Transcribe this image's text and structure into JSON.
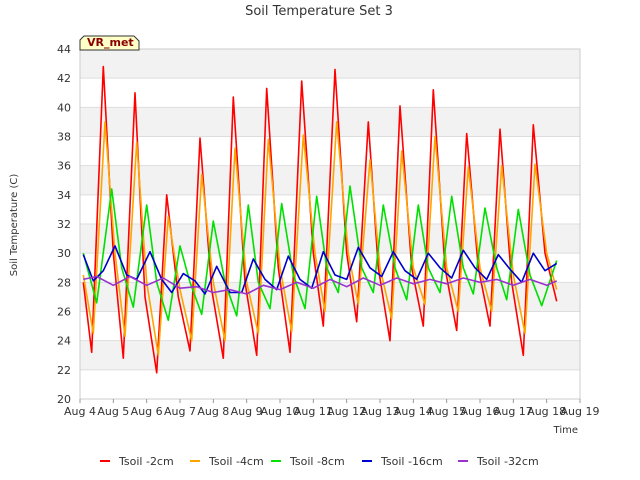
{
  "chart_data": {
    "type": "line",
    "title": "Soil Temperature Set 3",
    "xlabel": "Time",
    "ylabel": "Soil Temperature (C)",
    "ylim": [
      20,
      44
    ],
    "xlim": [
      4,
      19
    ],
    "yticks": [
      "20",
      "22",
      "24",
      "26",
      "28",
      "30",
      "32",
      "34",
      "36",
      "38",
      "40",
      "42",
      "44"
    ],
    "xticks": [
      "Aug 4",
      "Aug 5",
      "Aug 6",
      "Aug 7",
      "Aug 8",
      "Aug 9",
      "Aug 10",
      "Aug 11",
      "Aug 12",
      "Aug 13",
      "Aug 14",
      "Aug 15",
      "Aug 16",
      "Aug 17",
      "Aug 18",
      "Aug 19"
    ],
    "grid": true,
    "legend_position": "bottom",
    "badge": "VR_met",
    "series": [
      {
        "name": "Tsoil -2cm",
        "color": "#ff0000",
        "x": [
          4.1,
          4.35,
          4.7,
          5.0,
          5.3,
          5.65,
          5.95,
          6.3,
          6.6,
          6.95,
          7.3,
          7.6,
          7.95,
          8.3,
          8.6,
          8.95,
          9.3,
          9.6,
          9.95,
          10.3,
          10.65,
          11.0,
          11.3,
          11.65,
          12.0,
          12.3,
          12.65,
          12.95,
          13.3,
          13.6,
          13.95,
          14.3,
          14.6,
          14.95,
          15.3,
          15.6,
          15.95,
          16.3,
          16.6,
          16.95,
          17.3,
          17.6,
          17.95,
          18.3
        ],
        "y": [
          28.0,
          23.2,
          42.8,
          30.0,
          22.8,
          41.0,
          27.0,
          21.8,
          34.0,
          27.0,
          23.3,
          37.9,
          27.5,
          22.8,
          40.7,
          28.0,
          23.0,
          41.3,
          29.0,
          23.2,
          41.8,
          30.0,
          25.0,
          42.6,
          30.0,
          25.3,
          39.0,
          29.0,
          24.0,
          40.1,
          29.0,
          25.0,
          41.2,
          29.0,
          24.7,
          38.2,
          29.0,
          25.0,
          38.5,
          28.0,
          23.0,
          38.8,
          30.0,
          26.7
        ]
      },
      {
        "name": "Tsoil -4cm",
        "color": "#ffa500",
        "x": [
          4.1,
          4.4,
          4.75,
          5.05,
          5.35,
          5.7,
          6.0,
          6.35,
          6.65,
          7.0,
          7.35,
          7.65,
          8.0,
          8.35,
          8.65,
          9.0,
          9.35,
          9.65,
          10.0,
          10.35,
          10.7,
          11.05,
          11.35,
          11.7,
          12.05,
          12.35,
          12.7,
          13.0,
          13.35,
          13.65,
          14.0,
          14.35,
          14.65,
          15.0,
          15.35,
          15.65,
          16.0,
          16.35,
          16.65,
          17.0,
          17.35,
          17.65,
          18.0,
          18.3
        ],
        "y": [
          28.5,
          24.5,
          39.0,
          30.0,
          24.3,
          37.6,
          28.0,
          23.0,
          32.5,
          27.5,
          24.0,
          35.4,
          28.0,
          24.0,
          37.2,
          28.0,
          24.5,
          37.8,
          29.0,
          24.6,
          38.1,
          30.0,
          26.0,
          39.0,
          30.0,
          26.5,
          36.4,
          29.0,
          25.5,
          37.0,
          29.0,
          26.5,
          38.0,
          29.0,
          26.0,
          35.9,
          29.0,
          26.0,
          36.0,
          28.5,
          24.5,
          36.1,
          30.0,
          27.5
        ]
      },
      {
        "name": "Tsoil -8cm",
        "color": "#00e000",
        "x": [
          4.1,
          4.5,
          4.95,
          5.25,
          5.6,
          6.0,
          6.3,
          6.65,
          7.0,
          7.3,
          7.65,
          8.0,
          8.35,
          8.7,
          9.05,
          9.35,
          9.7,
          10.05,
          10.4,
          10.75,
          11.1,
          11.4,
          11.75,
          12.1,
          12.45,
          12.8,
          13.1,
          13.45,
          13.8,
          14.15,
          14.45,
          14.8,
          15.15,
          15.5,
          15.8,
          16.15,
          16.5,
          16.8,
          17.15,
          17.5,
          17.85,
          18.3
        ],
        "y": [
          30.0,
          26.6,
          34.4,
          29.0,
          26.3,
          33.3,
          28.0,
          25.4,
          30.5,
          28.0,
          25.8,
          32.2,
          28.0,
          25.7,
          33.3,
          28.0,
          26.2,
          33.4,
          28.5,
          26.2,
          33.9,
          29.0,
          27.3,
          34.6,
          29.0,
          27.3,
          33.3,
          29.0,
          26.8,
          33.3,
          29.0,
          27.3,
          33.9,
          29.0,
          27.2,
          33.1,
          29.0,
          26.8,
          33.0,
          28.5,
          26.4,
          29.5
        ]
      },
      {
        "name": "Tsoil -16cm",
        "color": "#0000cc",
        "x": [
          4.1,
          4.4,
          4.7,
          5.05,
          5.4,
          5.7,
          6.1,
          6.45,
          6.75,
          7.1,
          7.45,
          7.75,
          8.1,
          8.5,
          8.85,
          9.2,
          9.55,
          9.9,
          10.25,
          10.6,
          10.95,
          11.3,
          11.65,
          12.0,
          12.35,
          12.7,
          13.05,
          13.4,
          13.75,
          14.1,
          14.45,
          14.8,
          15.15,
          15.5,
          15.85,
          16.2,
          16.55,
          16.9,
          17.25,
          17.6,
          17.95,
          18.3
        ],
        "y": [
          29.9,
          28.1,
          28.8,
          30.5,
          28.5,
          28.2,
          30.1,
          28.2,
          27.3,
          28.6,
          28.1,
          27.2,
          29.1,
          27.3,
          27.3,
          29.6,
          28.2,
          27.5,
          29.8,
          28.2,
          27.6,
          30.1,
          28.5,
          28.2,
          30.4,
          29.0,
          28.4,
          30.1,
          28.8,
          28.2,
          30.0,
          29.0,
          28.3,
          30.2,
          29.0,
          28.2,
          29.9,
          28.9,
          28.0,
          30.0,
          28.8,
          29.3
        ]
      },
      {
        "name": "Tsoil -32cm",
        "color": "#9933cc",
        "x": [
          4.1,
          4.5,
          5.0,
          5.5,
          6.0,
          6.5,
          7.0,
          7.5,
          8.0,
          8.5,
          9.0,
          9.5,
          10.0,
          10.5,
          11.0,
          11.5,
          12.0,
          12.5,
          13.0,
          13.5,
          14.0,
          14.5,
          15.0,
          15.5,
          16.0,
          16.5,
          17.0,
          17.5,
          18.0,
          18.3
        ],
        "y": [
          28.2,
          28.4,
          27.8,
          28.4,
          27.8,
          28.3,
          27.6,
          27.7,
          27.3,
          27.5,
          27.2,
          27.8,
          27.5,
          28.0,
          27.6,
          28.2,
          27.7,
          28.3,
          27.8,
          28.3,
          27.9,
          28.2,
          27.9,
          28.3,
          28.0,
          28.2,
          27.8,
          28.2,
          27.8,
          28.1
        ]
      }
    ]
  }
}
